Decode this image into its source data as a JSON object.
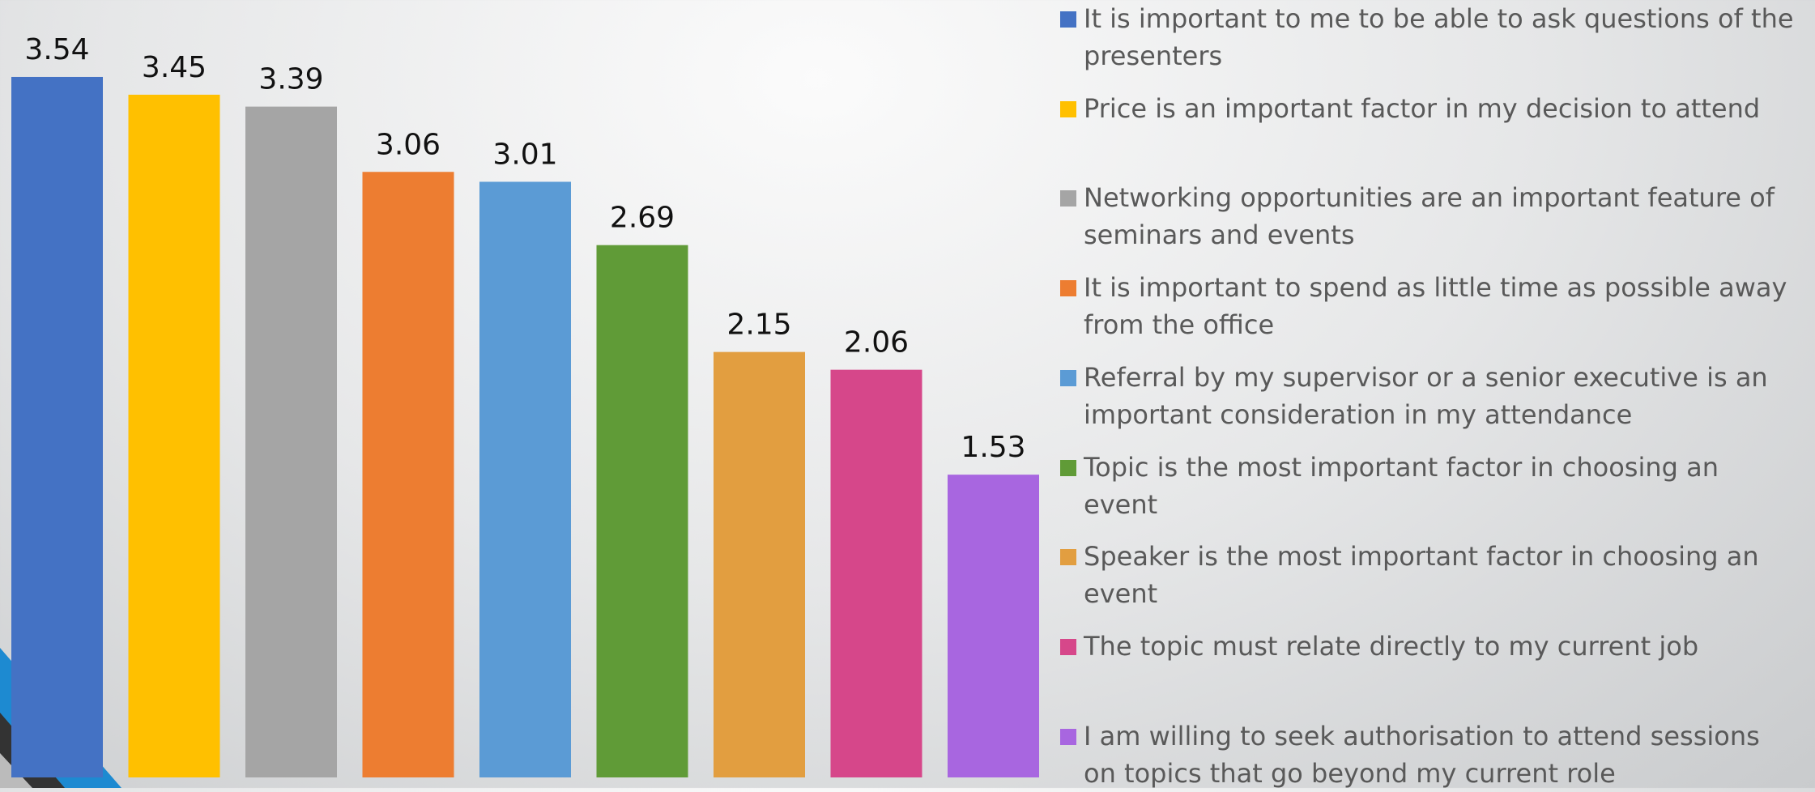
{
  "chart_data": {
    "type": "bar",
    "categories": [
      "It is important to me to be able to ask questions of the presenters",
      "Price is an important factor in my decision to attend",
      "Networking opportunities are an important feature of seminars and events",
      "It is important to spend as little time as possible away from the office",
      "Referral by my supervisor or a senior executive is an important consideration in my attendance",
      "Topic is the most important factor in choosing an event",
      "Speaker is the most important factor in choosing an event",
      "The topic must relate directly to my current job",
      "I am willing to seek authorisation to attend sessions on topics that go beyond my current role"
    ],
    "values": [
      3.54,
      3.45,
      3.39,
      3.06,
      3.01,
      2.69,
      2.15,
      2.06,
      1.53
    ],
    "colors": [
      "#4472c4",
      "#ffc000",
      "#a5a5a5",
      "#ed7d31",
      "#5b9bd5",
      "#609b37",
      "#e29e40",
      "#d6478a",
      "#a866e0"
    ],
    "ylim": [
      0,
      3.9
    ]
  }
}
